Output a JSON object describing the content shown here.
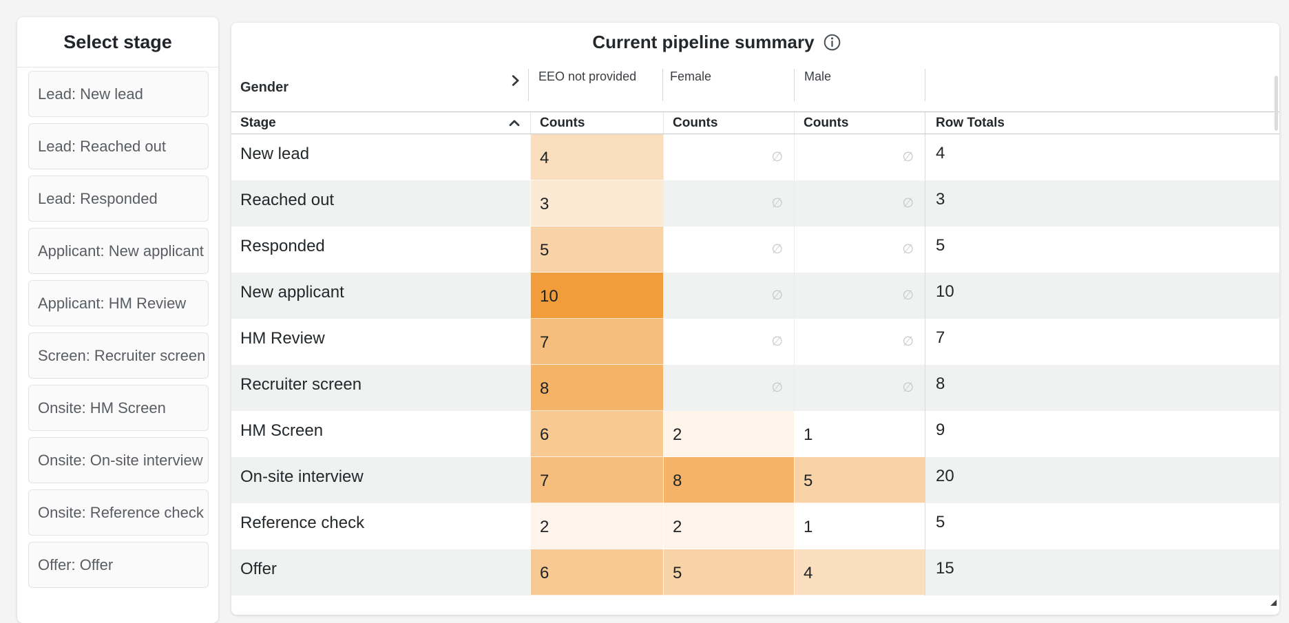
{
  "sidebar": {
    "title": "Select stage",
    "items": [
      "Lead: New lead",
      "Lead: Reached out",
      "Lead: Responded",
      "Applicant: New applicant",
      "Applicant: HM Review",
      "Screen: Recruiter screen",
      "Onsite: HM Screen",
      "Onsite: On-site interview",
      "Onsite: Reference check",
      "Offer: Offer"
    ]
  },
  "main": {
    "title": "Current pipeline summary",
    "pivot": {
      "column_dimension": "Gender",
      "row_dimension": "Stage",
      "value_label": "Counts",
      "row_totals_label": "Row Totals",
      "empty_symbol": "∅",
      "column_groups": [
        "EEO not provided",
        "Female",
        "Male"
      ],
      "rows": [
        {
          "stage": "New lead",
          "counts": [
            4,
            null,
            null
          ],
          "total": 4
        },
        {
          "stage": "Reached out",
          "counts": [
            3,
            null,
            null
          ],
          "total": 3
        },
        {
          "stage": "Responded",
          "counts": [
            5,
            null,
            null
          ],
          "total": 5
        },
        {
          "stage": "New applicant",
          "counts": [
            10,
            null,
            null
          ],
          "total": 10
        },
        {
          "stage": "HM Review",
          "counts": [
            7,
            null,
            null
          ],
          "total": 7
        },
        {
          "stage": "Recruiter screen",
          "counts": [
            8,
            null,
            null
          ],
          "total": 8
        },
        {
          "stage": "HM Screen",
          "counts": [
            6,
            2,
            1
          ],
          "total": 9
        },
        {
          "stage": "On-site interview",
          "counts": [
            7,
            8,
            5
          ],
          "total": 20
        },
        {
          "stage": "Reference check",
          "counts": [
            2,
            2,
            1
          ],
          "total": 5
        },
        {
          "stage": "Offer",
          "counts": [
            6,
            5,
            4
          ],
          "total": 15
        }
      ]
    }
  },
  "colors": {
    "heat_low": "#ffffff",
    "heat_high": "#f29d3b",
    "row_stripe": "#f0f1f1"
  }
}
